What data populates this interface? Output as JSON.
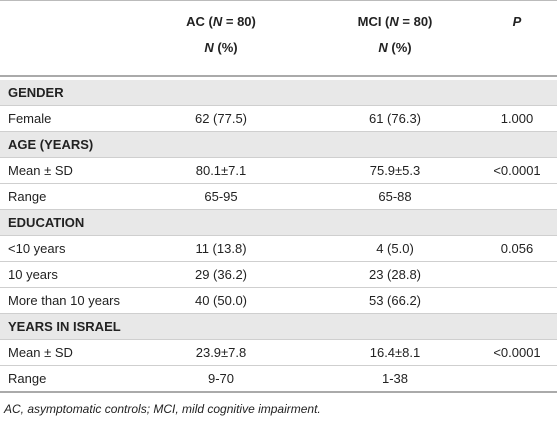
{
  "header": {
    "columns": [
      {
        "parts": [
          "AC (",
          "N",
          " = 80)"
        ],
        "sub_parts": [
          "N",
          " (%)"
        ]
      },
      {
        "parts": [
          "MCI (",
          "N",
          " = 80)"
        ],
        "sub_parts": [
          "N",
          " (%)"
        ]
      },
      {
        "parts": [
          "P"
        ]
      }
    ]
  },
  "sections": [
    {
      "title": "GENDER",
      "rows": [
        [
          "Female",
          "62 (77.5)",
          "61 (76.3)",
          "1.000"
        ]
      ]
    },
    {
      "title": "AGE (YEARS)",
      "rows": [
        [
          "Mean ± SD",
          "80.1±7.1",
          "75.9±5.3",
          "<0.0001"
        ],
        [
          "Range",
          "65-95",
          "65-88"
        ]
      ]
    },
    {
      "title": "EDUCATION",
      "rows": [
        [
          "<10 years",
          "11 (13.8)",
          "4 (5.0)",
          "0.056"
        ],
        [
          "10 years",
          "29 (36.2)",
          "23 (28.8)"
        ],
        [
          "More than 10 years",
          "40 (50.0)",
          "53 (66.2)"
        ]
      ]
    },
    {
      "title": "YEARS IN ISRAEL",
      "rows": [
        [
          "Mean ± SD",
          "23.9±7.8",
          "16.4±8.1",
          "<0.0001"
        ],
        [
          "Range",
          "9-70",
          "1-38"
        ]
      ]
    }
  ],
  "footnote": "AC, asymptomatic controls; MCI, mild cognitive impairment."
}
